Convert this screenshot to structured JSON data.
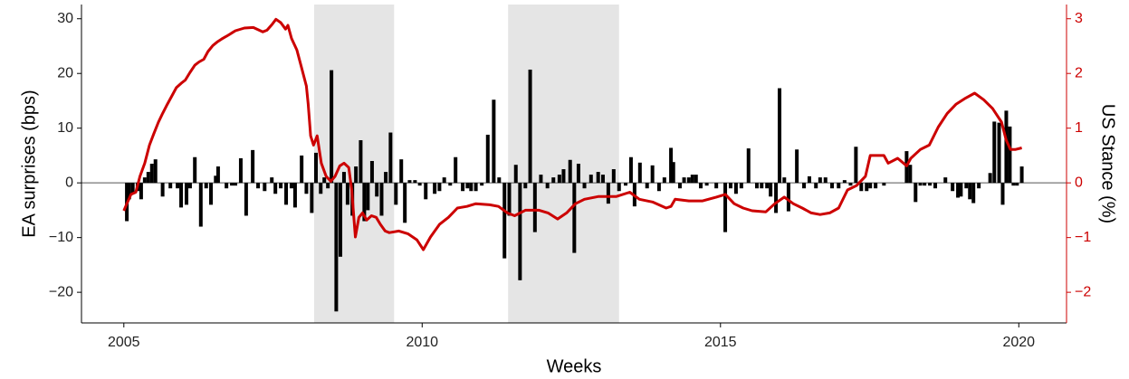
{
  "chart_data": {
    "type": "combo",
    "x_label": "Weeks",
    "y_label": "EA surprises (bps)",
    "y2_label": "US Stance (%)",
    "xlim": [
      2004.29,
      2020.8
    ],
    "xticks": [
      2005,
      2010,
      2015,
      2020
    ],
    "ylim": [
      -25.6,
      32.6
    ],
    "yticks": [
      {
        "value": -20,
        "label": "−20"
      },
      {
        "value": -10,
        "label": "−10"
      },
      0,
      10,
      20,
      30
    ],
    "y2lim": [
      -2.56,
      3.26
    ],
    "y2ticks": [
      {
        "value": -2,
        "label": "−2"
      },
      {
        "value": -1,
        "label": "−1"
      },
      0,
      1,
      2,
      3
    ],
    "y2_color": "#cc0000",
    "hline": 0,
    "shaded": [
      [
        2008.19,
        2009.53
      ],
      [
        2011.44,
        2013.3
      ]
    ],
    "shade_color": "#e5e5e5",
    "series": [
      {
        "type": "bar",
        "color": "#000000",
        "x": [
          2005.05,
          2005.09,
          2005.15,
          2005.23,
          2005.29,
          2005.35,
          2005.41,
          2005.47,
          2005.53,
          2005.65,
          2005.78,
          2005.9,
          2005.96,
          2006.05,
          2006.11,
          2006.19,
          2006.29,
          2006.38,
          2006.46,
          2006.54,
          2006.58,
          2006.72,
          2006.81,
          2006.87,
          2006.96,
          2007.05,
          2007.16,
          2007.25,
          2007.36,
          2007.48,
          2007.54,
          2007.63,
          2007.72,
          2007.81,
          2007.87,
          2007.98,
          2008.06,
          2008.15,
          2008.22,
          2008.3,
          2008.36,
          2008.42,
          2008.48,
          2008.56,
          2008.63,
          2008.69,
          2008.75,
          2008.83,
          2008.89,
          2008.97,
          2009.03,
          2009.09,
          2009.16,
          2009.24,
          2009.32,
          2009.39,
          2009.47,
          2009.56,
          2009.65,
          2009.71,
          2009.79,
          2009.88,
          2009.96,
          2010.06,
          2010.21,
          2010.29,
          2010.37,
          2010.47,
          2010.56,
          2010.68,
          2010.76,
          2010.82,
          2010.9,
          2011.0,
          2011.1,
          2011.2,
          2011.29,
          2011.38,
          2011.46,
          2011.57,
          2011.64,
          2011.73,
          2011.81,
          2011.89,
          2011.99,
          2012.1,
          2012.2,
          2012.3,
          2012.37,
          2012.48,
          2012.55,
          2012.62,
          2012.72,
          2012.83,
          2012.95,
          2013.03,
          2013.12,
          2013.21,
          2013.3,
          2013.41,
          2013.5,
          2013.56,
          2013.65,
          2013.77,
          2013.86,
          2013.97,
          2014.06,
          2014.17,
          2014.21,
          2014.32,
          2014.39,
          2014.47,
          2014.53,
          2014.59,
          2014.67,
          2014.77,
          2014.93,
          2015.08,
          2015.17,
          2015.26,
          2015.35,
          2015.47,
          2015.61,
          2015.69,
          2015.78,
          2015.84,
          2015.93,
          2015.99,
          2016.07,
          2016.14,
          2016.28,
          2016.4,
          2016.49,
          2016.6,
          2016.67,
          2016.76,
          2016.87,
          2016.98,
          2017.08,
          2017.18,
          2017.27,
          2017.36,
          2017.45,
          2017.51,
          2017.6,
          2017.74,
          2018.12,
          2018.18,
          2018.27,
          2018.35,
          2018.42,
          2018.51,
          2018.6,
          2018.77,
          2018.89,
          2018.98,
          2019.03,
          2019.12,
          2019.18,
          2019.24,
          2019.33,
          2019.52,
          2019.59,
          2019.67,
          2019.73,
          2019.79,
          2019.85,
          2019.91,
          2019.97,
          2020.05
        ],
        "values": [
          -7,
          -3,
          -2,
          -1.5,
          -3,
          1,
          2,
          3.5,
          4.3,
          -2.5,
          -1,
          -1,
          -4.5,
          -4,
          -1,
          4.7,
          -8,
          -1,
          -4,
          1.3,
          3,
          -1,
          -0.5,
          -0.5,
          4.5,
          -6,
          6,
          -1,
          -1.5,
          1,
          -2,
          -1,
          -4,
          -1,
          -4.5,
          5,
          -2,
          -5.5,
          5.5,
          -2,
          1,
          -1,
          20.6,
          -23.5,
          -13.5,
          2,
          -4,
          -6,
          3,
          7.8,
          -7,
          -5,
          4,
          -2.5,
          -6,
          2,
          9.2,
          -4,
          4.3,
          -7.3,
          0.5,
          0.5,
          -0.5,
          -3,
          -2,
          -1.5,
          1,
          -0.5,
          4.7,
          -1.5,
          -1,
          -1.5,
          -1.5,
          -0.5,
          8.8,
          15.2,
          1,
          -13.8,
          -6,
          3.3,
          -17.8,
          -1,
          20.7,
          -9,
          1.5,
          -1,
          1,
          1.5,
          2.5,
          4.2,
          -12.8,
          3.5,
          -1,
          1.5,
          2,
          1.5,
          -3.8,
          2.5,
          -1.5,
          -0.5,
          4.7,
          -4.3,
          3.7,
          -1,
          3.2,
          -1.5,
          1,
          6.4,
          3.8,
          -1,
          1,
          1,
          1.5,
          1.5,
          -1,
          -0.5,
          -1,
          -9,
          -1,
          -2,
          -1,
          6.3,
          -1,
          -1,
          -1,
          -2.5,
          -5.5,
          17.3,
          1,
          -5.2,
          6.1,
          -1,
          1.2,
          -1,
          1,
          1,
          -1,
          -1,
          0.5,
          -0.5,
          6.6,
          -1.5,
          -1.5,
          -1,
          -1,
          -0.5,
          5.8,
          3.3,
          -3.5,
          -0.5,
          -0.5,
          -0.5,
          -1,
          1,
          -1.5,
          -2.7,
          -2.5,
          -1,
          -3,
          -3.7,
          -1,
          1.8,
          11.2,
          11,
          -4,
          13.2,
          10.3,
          -0.5,
          -0.5,
          3
        ]
      },
      {
        "type": "line",
        "axis": "y2",
        "color": "#cc0000",
        "x": [
          2005.0,
          2005.05,
          2005.12,
          2005.2,
          2005.27,
          2005.35,
          2005.43,
          2005.5,
          2005.58,
          2005.65,
          2005.73,
          2005.81,
          2005.88,
          2005.96,
          2006.03,
          2006.11,
          2006.19,
          2006.26,
          2006.34,
          2006.41,
          2006.49,
          2006.57,
          2006.64,
          2006.72,
          2006.87,
          2007.02,
          2007.17,
          2007.33,
          2007.4,
          2007.48,
          2007.55,
          2007.63,
          2007.71,
          2007.75,
          2007.81,
          2007.9,
          2007.98,
          2008.06,
          2008.09,
          2008.13,
          2008.18,
          2008.24,
          2008.31,
          2008.39,
          2008.47,
          2008.54,
          2008.62,
          2008.69,
          2008.77,
          2008.82,
          2008.88,
          2008.94,
          2009.0,
          2009.07,
          2009.15,
          2009.23,
          2009.3,
          2009.38,
          2009.45,
          2009.61,
          2009.76,
          2009.91,
          2010.02,
          2010.14,
          2010.29,
          2010.44,
          2010.59,
          2010.75,
          2010.9,
          2011.13,
          2011.28,
          2011.43,
          2011.55,
          2011.73,
          2011.96,
          2012.11,
          2012.27,
          2012.42,
          2012.57,
          2012.72,
          2012.95,
          2013.25,
          2013.48,
          2013.64,
          2013.86,
          2014.09,
          2014.17,
          2014.24,
          2014.47,
          2014.7,
          2014.93,
          2015.08,
          2015.23,
          2015.38,
          2015.53,
          2015.76,
          2015.91,
          2016.07,
          2016.22,
          2016.37,
          2016.52,
          2016.67,
          2016.83,
          2016.98,
          2017.13,
          2017.28,
          2017.43,
          2017.51,
          2017.74,
          2017.81,
          2017.97,
          2018.12,
          2018.19,
          2018.35,
          2018.5,
          2018.65,
          2018.8,
          2018.95,
          2019.11,
          2019.26,
          2019.41,
          2019.56,
          2019.71,
          2019.79,
          2019.86,
          2019.94,
          2020.05
        ],
        "values": [
          -0.51,
          -0.38,
          -0.21,
          -0.17,
          0.12,
          0.36,
          0.69,
          0.89,
          1.11,
          1.27,
          1.44,
          1.6,
          1.74,
          1.82,
          1.88,
          2.02,
          2.15,
          2.21,
          2.26,
          2.4,
          2.51,
          2.58,
          2.63,
          2.68,
          2.78,
          2.83,
          2.84,
          2.76,
          2.79,
          2.89,
          2.99,
          2.93,
          2.81,
          2.88,
          2.64,
          2.43,
          2.1,
          1.77,
          1.44,
          0.86,
          0.69,
          0.86,
          0.36,
          0.12,
          0.03,
          0.12,
          0.31,
          0.36,
          0.28,
          -0.13,
          -0.99,
          -0.63,
          -0.55,
          -0.68,
          -0.6,
          -0.63,
          -0.76,
          -0.88,
          -0.91,
          -0.88,
          -0.93,
          -1.04,
          -1.22,
          -0.99,
          -0.76,
          -0.63,
          -0.46,
          -0.43,
          -0.38,
          -0.4,
          -0.43,
          -0.55,
          -0.6,
          -0.5,
          -0.5,
          -0.55,
          -0.66,
          -0.55,
          -0.38,
          -0.3,
          -0.25,
          -0.25,
          -0.17,
          -0.3,
          -0.35,
          -0.46,
          -0.43,
          -0.3,
          -0.33,
          -0.33,
          -0.26,
          -0.21,
          -0.38,
          -0.46,
          -0.51,
          -0.53,
          -0.38,
          -0.26,
          -0.38,
          -0.46,
          -0.55,
          -0.58,
          -0.55,
          -0.46,
          -0.13,
          -0.05,
          0.12,
          0.5,
          0.5,
          0.36,
          0.45,
          0.31,
          0.45,
          0.61,
          0.69,
          1.02,
          1.27,
          1.44,
          1.55,
          1.64,
          1.52,
          1.36,
          1.11,
          0.78,
          0.61,
          0.61,
          0.64
        ]
      }
    ]
  }
}
